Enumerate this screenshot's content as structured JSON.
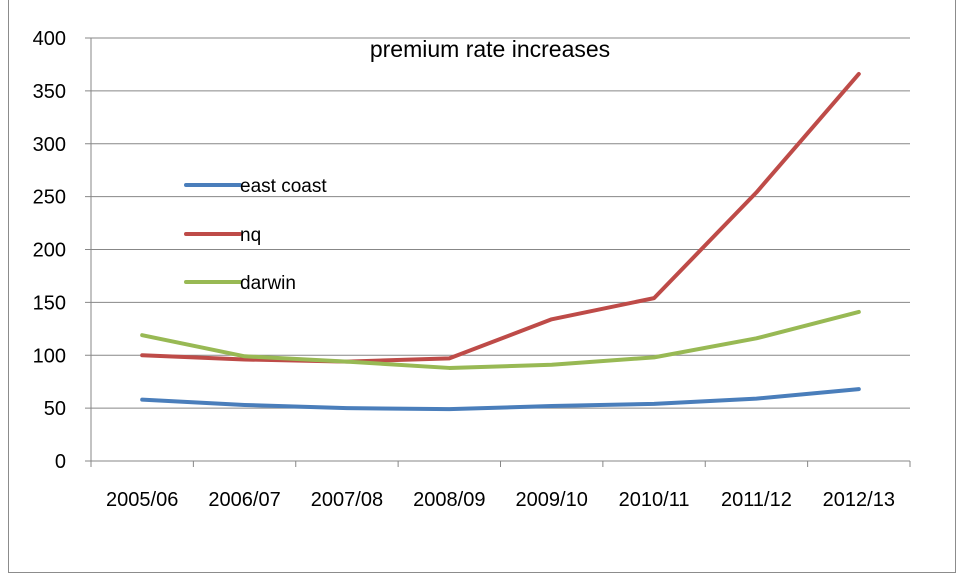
{
  "chart_data": {
    "type": "line",
    "title": "premium rate increases",
    "xlabel": "",
    "ylabel": "",
    "categories": [
      "2005/06",
      "2006/07",
      "2007/08",
      "2008/09",
      "2009/10",
      "2010/11",
      "2011/12",
      "2012/13"
    ],
    "ylim": [
      0,
      400
    ],
    "yticks": [
      0,
      50,
      100,
      150,
      200,
      250,
      300,
      350,
      400
    ],
    "grid": true,
    "legend_position": "left",
    "series": [
      {
        "name": "east coast",
        "color": "#4a7ebb",
        "values": [
          58,
          53,
          50,
          49,
          52,
          54,
          59,
          68
        ]
      },
      {
        "name": "nq",
        "color": "#be4b48",
        "values": [
          100,
          96,
          94,
          97,
          134,
          154,
          254,
          366
        ]
      },
      {
        "name": "darwin",
        "color": "#98b954",
        "values": [
          119,
          99,
          94,
          88,
          91,
          98,
          116,
          141
        ]
      }
    ]
  }
}
